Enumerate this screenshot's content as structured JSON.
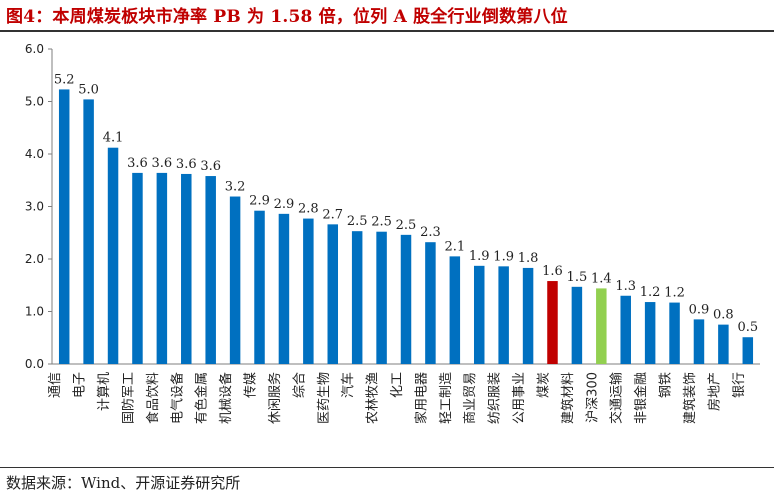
{
  "header": {
    "title": "图4：本周煤炭板块市净率 PB 为 1.58 倍，位列 A 股全行业倒数第八位"
  },
  "footer": {
    "source": "数据来源：Wind、开源证券研究所"
  },
  "colors": {
    "default": "#0070C0",
    "highlight": "#C00000",
    "index": "#92D050"
  },
  "chart_data": {
    "type": "bar",
    "title": "",
    "xlabel": "",
    "ylabel": "",
    "ylim": [
      0.0,
      6.0
    ],
    "yticks": [
      "0.0",
      "1.0",
      "2.0",
      "3.0",
      "4.0",
      "5.0",
      "6.0"
    ],
    "grid": false,
    "legend": "none",
    "categories": [
      "通信",
      "电子",
      "计算机",
      "国防军工",
      "食品饮料",
      "电气设备",
      "有色金属",
      "机械设备",
      "传媒",
      "休闲服务",
      "综合",
      "医药生物",
      "汽车",
      "农林牧渔",
      "化工",
      "家用电器",
      "轻工制造",
      "商业贸易",
      "纺织服装",
      "公用事业",
      "煤炭",
      "建筑材料",
      "沪深300",
      "交通运输",
      "非银金融",
      "钢铁",
      "建筑装饰",
      "房地产",
      "银行"
    ],
    "values": [
      5.23,
      5.04,
      4.12,
      3.64,
      3.64,
      3.62,
      3.58,
      3.19,
      2.92,
      2.86,
      2.77,
      2.66,
      2.53,
      2.52,
      2.46,
      2.32,
      2.05,
      1.87,
      1.86,
      1.83,
      1.58,
      1.47,
      1.44,
      1.3,
      1.18,
      1.17,
      0.85,
      0.75,
      0.51
    ],
    "labels": [
      "5.2",
      "5.0",
      "4.1",
      "3.6",
      "3.6",
      "3.6",
      "3.6",
      "3.2",
      "2.9",
      "2.9",
      "2.8",
      "2.7",
      "2.5",
      "2.5",
      "2.5",
      "2.3",
      "2.1",
      "1.9",
      "1.9",
      "1.8",
      "1.6",
      "1.5",
      "1.4",
      "1.3",
      "1.2",
      "1.2",
      "0.9",
      "0.8",
      "0.5"
    ],
    "bar_colors": [
      "default",
      "default",
      "default",
      "default",
      "default",
      "default",
      "default",
      "default",
      "default",
      "default",
      "default",
      "default",
      "default",
      "default",
      "default",
      "default",
      "default",
      "default",
      "default",
      "default",
      "highlight",
      "default",
      "index",
      "default",
      "default",
      "default",
      "default",
      "default",
      "default"
    ]
  }
}
